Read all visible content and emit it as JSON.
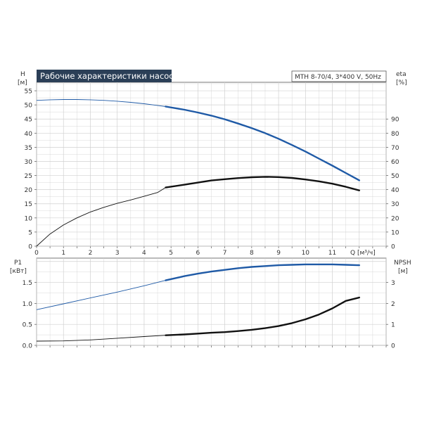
{
  "title_box": {
    "text": "Рабочие характеристики насоса",
    "bg": "#2b3f57",
    "fg": "#ffffff"
  },
  "model_box": {
    "text": "MTH 8-70/4, 3*400 V, 50Hz"
  },
  "colors": {
    "blue": "#1f5aa6",
    "black": "#111111",
    "grid": "#d0d0d0",
    "axis": "#555555"
  },
  "chart_data": [
    {
      "id": "top",
      "type": "line",
      "left_axis": {
        "label_line1": "H",
        "label_line2": "[м]",
        "ylim": [
          0,
          58
        ],
        "ticks": [
          0,
          5,
          10,
          15,
          20,
          25,
          30,
          35,
          40,
          45,
          50,
          55
        ]
      },
      "right_axis": {
        "label_line1": "eta",
        "label_line2": "[%]",
        "ylim": [
          0,
          116
        ],
        "ticks": [
          0,
          10,
          20,
          30,
          40,
          50,
          60,
          70,
          80,
          90
        ]
      },
      "x_axis": {
        "label": "Q [м³/ч]",
        "xlim": [
          0,
          13
        ],
        "ticks": [
          0,
          1,
          2,
          3,
          4,
          5,
          6,
          7,
          8,
          9,
          10,
          11
        ]
      },
      "grid": true,
      "series": [
        {
          "key": "H",
          "axis": "left",
          "color": "blue",
          "x": [
            0,
            0.5,
            1,
            1.5,
            2,
            2.5,
            3,
            3.5,
            4,
            4.5,
            4.8,
            5.5,
            6,
            6.5,
            7,
            7.5,
            8,
            8.5,
            9,
            9.5,
            10,
            10.5,
            11,
            11.5,
            12
          ],
          "y": [
            51.6,
            51.8,
            51.9,
            51.9,
            51.8,
            51.6,
            51.3,
            50.9,
            50.4,
            49.8,
            49.4,
            48.3,
            47.3,
            46.2,
            44.9,
            43.4,
            41.8,
            40.0,
            38.0,
            35.8,
            33.5,
            31.0,
            28.5,
            25.9,
            23.3
          ],
          "thin_until": 4.8
        },
        {
          "key": "eta",
          "axis": "right",
          "color": "black",
          "x": [
            0,
            0.5,
            1,
            1.5,
            2,
            2.5,
            3,
            3.5,
            4,
            4.5,
            4.8,
            5.5,
            6,
            6.5,
            7,
            7.5,
            8,
            8.5,
            9,
            9.5,
            10,
            10.5,
            11,
            11.5,
            12
          ],
          "y": [
            0,
            8.6,
            15.0,
            20.0,
            24.2,
            27.5,
            30.3,
            32.7,
            35.3,
            38.0,
            41.5,
            43.5,
            45.0,
            46.5,
            47.4,
            48.2,
            48.8,
            49.1,
            48.9,
            48.3,
            47.2,
            45.9,
            44.2,
            42.0,
            39.5
          ],
          "thin_until": 4.8
        }
      ]
    },
    {
      "id": "bottom",
      "type": "line",
      "left_axis": {
        "label_line1": "P1",
        "label_line2": "[кВт]",
        "ylim": [
          0,
          2.08
        ],
        "ticks": [
          0.0,
          0.5,
          1.0,
          1.5
        ],
        "tick_labels": [
          "0.0",
          "0.5",
          "1.0",
          "1.5"
        ]
      },
      "right_axis": {
        "label_line1": "NPSH",
        "label_line2": "[м]",
        "ylim": [
          0,
          4.16
        ],
        "ticks": [
          0,
          1,
          2,
          3
        ]
      },
      "x_axis": {
        "xlim": [
          0,
          13
        ],
        "ticks": [
          0,
          1,
          2,
          3,
          4,
          5,
          6,
          7,
          8,
          9,
          10,
          11
        ]
      },
      "grid": true,
      "series": [
        {
          "key": "P1",
          "axis": "left",
          "color": "blue",
          "x": [
            0,
            1,
            2,
            3,
            4,
            4.8,
            5.5,
            6,
            6.5,
            7,
            7.5,
            8,
            8.5,
            9,
            9.5,
            10,
            10.5,
            11,
            11.5,
            12
          ],
          "y": [
            0.85,
            0.99,
            1.13,
            1.27,
            1.42,
            1.55,
            1.65,
            1.71,
            1.76,
            1.8,
            1.84,
            1.87,
            1.89,
            1.91,
            1.92,
            1.93,
            1.93,
            1.93,
            1.92,
            1.91
          ],
          "thin_until": 4.8
        },
        {
          "key": "NPSH",
          "axis": "right",
          "color": "black",
          "x": [
            0,
            1,
            2,
            3,
            4,
            4.8,
            5.5,
            6,
            6.5,
            7,
            7.5,
            8,
            8.5,
            9,
            9.5,
            10,
            10.5,
            11,
            11.5,
            12
          ],
          "y": [
            0.2,
            0.21,
            0.26,
            0.34,
            0.42,
            0.48,
            0.52,
            0.56,
            0.6,
            0.63,
            0.68,
            0.74,
            0.82,
            0.92,
            1.06,
            1.24,
            1.47,
            1.76,
            2.12,
            2.28
          ],
          "thin_until": 4.8
        }
      ]
    }
  ]
}
